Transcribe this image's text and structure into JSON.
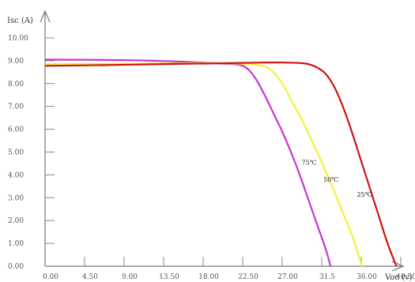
{
  "chart_data": {
    "type": "line",
    "xlabel": "Voc (v)",
    "ylabel": "Isc (A)",
    "xlim": [
      0,
      49.5
    ],
    "ylim": [
      0,
      11.5
    ],
    "xticks": [
      "0.00",
      "4.50",
      "9.00",
      "13.50",
      "18.00",
      "22.50",
      "27.00",
      "31.5",
      "36.00",
      "40.50"
    ],
    "yticks": [
      "0.00",
      "1.00",
      "2.00",
      "3.00",
      "4.00",
      "5.00",
      "6.00",
      "7.00",
      "8.00",
      "9.00",
      "10.00"
    ],
    "grid": false,
    "series": [
      {
        "name": "75℃",
        "color": "#cc33cc",
        "label_at": [
          29.2,
          4.45
        ],
        "points": [
          [
            0,
            9.05
          ],
          [
            5,
            9.04
          ],
          [
            10,
            9.02
          ],
          [
            15,
            8.97
          ],
          [
            18,
            8.92
          ],
          [
            20,
            8.88
          ],
          [
            21.5,
            8.85
          ],
          [
            22.5,
            8.78
          ],
          [
            23.2,
            8.6
          ],
          [
            24,
            8.2
          ],
          [
            25,
            7.5
          ],
          [
            26,
            6.7
          ],
          [
            27,
            5.9
          ],
          [
            28,
            5.0
          ],
          [
            29,
            4.0
          ],
          [
            30,
            2.9
          ],
          [
            31,
            1.8
          ],
          [
            32,
            0.7
          ],
          [
            32.5,
            0.0
          ]
        ]
      },
      {
        "name": "50℃",
        "color": "#f2f233",
        "label_at": [
          31.7,
          3.7
        ],
        "points": [
          [
            0,
            8.85
          ],
          [
            5,
            8.86
          ],
          [
            10,
            8.87
          ],
          [
            15,
            8.89
          ],
          [
            18,
            8.9
          ],
          [
            21,
            8.89
          ],
          [
            23.5,
            8.85
          ],
          [
            25,
            8.75
          ],
          [
            26,
            8.5
          ],
          [
            27,
            8.0
          ],
          [
            28,
            7.3
          ],
          [
            29,
            6.6
          ],
          [
            30,
            5.8
          ],
          [
            31,
            5.0
          ],
          [
            32,
            4.1
          ],
          [
            33,
            3.2
          ],
          [
            34,
            2.25
          ],
          [
            35,
            1.3
          ],
          [
            36,
            0.1
          ],
          [
            36.2,
            0.0
          ]
        ]
      },
      {
        "name": "25℃",
        "color": "#cc1111",
        "label_at": [
          35.5,
          3.05
        ],
        "points": [
          [
            0,
            8.78
          ],
          [
            5,
            8.8
          ],
          [
            10,
            8.83
          ],
          [
            15,
            8.86
          ],
          [
            20,
            8.89
          ],
          [
            25,
            8.92
          ],
          [
            27,
            8.92
          ],
          [
            29,
            8.9
          ],
          [
            30,
            8.85
          ],
          [
            31,
            8.7
          ],
          [
            32,
            8.4
          ],
          [
            33,
            7.8
          ],
          [
            34,
            6.9
          ],
          [
            35,
            5.8
          ],
          [
            36,
            4.6
          ],
          [
            37,
            3.4
          ],
          [
            38,
            2.2
          ],
          [
            39,
            1.0
          ],
          [
            40,
            0.0
          ]
        ]
      }
    ]
  }
}
